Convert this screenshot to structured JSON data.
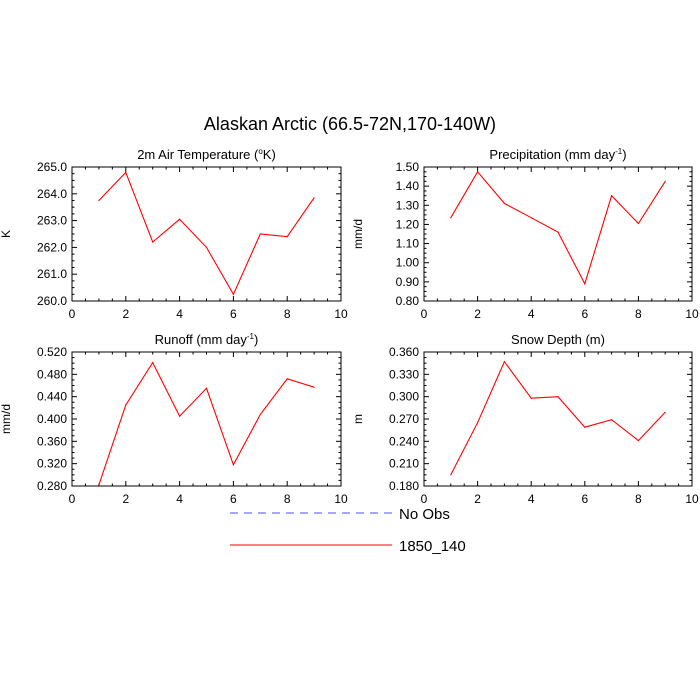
{
  "figure": {
    "title": "Alaskan Arctic (66.5-72N,170-140W)"
  },
  "legend": {
    "placement": "bottom-center",
    "entries": [
      {
        "label": "No Obs",
        "color": "#4f4fff",
        "dash": true
      },
      {
        "label": "1850_140",
        "color": "#ff0000",
        "dash": false
      }
    ]
  },
  "chart_data": [
    {
      "type": "line",
      "title": "2m Air Temperature (°K)",
      "title_main": "2m Air Temperature (",
      "title_sup": "o",
      "title_tail": "K)",
      "ylabel": "K",
      "xlim": [
        0,
        10
      ],
      "ylim": [
        260.0,
        265.0
      ],
      "x_ticks": [
        "0",
        "2",
        "4",
        "6",
        "8",
        "10"
      ],
      "y_ticks": [
        "260.0",
        "261.0",
        "262.0",
        "263.0",
        "264.0",
        "265.0"
      ],
      "series": [
        {
          "name": "1850_140",
          "color": "#ff0000",
          "x": [
            1,
            2,
            3,
            4,
            5,
            6,
            7,
            8,
            9
          ],
          "values": [
            263.75,
            264.8,
            262.2,
            263.05,
            262.0,
            260.25,
            262.5,
            262.4,
            263.85
          ]
        }
      ]
    },
    {
      "type": "line",
      "title": "Precipitation (mm day-1)",
      "title_main": "Precipitation (mm day",
      "title_sup": "-1",
      "title_tail": ")",
      "ylabel": "mm/d",
      "xlim": [
        0,
        10
      ],
      "ylim": [
        0.8,
        1.5
      ],
      "x_ticks": [
        "0",
        "2",
        "4",
        "6",
        "8",
        "10"
      ],
      "y_ticks": [
        "0.80",
        "0.90",
        "1.00",
        "1.10",
        "1.20",
        "1.30",
        "1.40",
        "1.50"
      ],
      "series": [
        {
          "name": "1850_140",
          "color": "#ff0000",
          "x": [
            1,
            2,
            3,
            4,
            5,
            6,
            7,
            8,
            9
          ],
          "values": [
            1.235,
            1.475,
            1.31,
            1.235,
            1.16,
            0.89,
            1.35,
            1.205,
            1.425
          ]
        }
      ]
    },
    {
      "type": "line",
      "title": "Runoff (mm day-1)",
      "title_main": "Runoff (mm day",
      "title_sup": "-1",
      "title_tail": ")",
      "ylabel": "mm/d",
      "xlim": [
        0,
        10
      ],
      "ylim": [
        0.28,
        0.52
      ],
      "x_ticks": [
        "0",
        "2",
        "4",
        "6",
        "8",
        "10"
      ],
      "y_ticks": [
        "0.280",
        "0.320",
        "0.360",
        "0.400",
        "0.440",
        "0.480",
        "0.520"
      ],
      "series": [
        {
          "name": "1850_140",
          "color": "#ff0000",
          "x": [
            1,
            2,
            3,
            4,
            5,
            6,
            7,
            8,
            9
          ],
          "values": [
            0.282,
            0.425,
            0.501,
            0.405,
            0.455,
            0.318,
            0.408,
            0.472,
            0.457
          ]
        }
      ]
    },
    {
      "type": "line",
      "title": "Snow Depth (m)",
      "title_main": "Snow Depth (m)",
      "title_sup": "",
      "title_tail": "",
      "ylabel": "m",
      "xlim": [
        0,
        10
      ],
      "ylim": [
        0.18,
        0.36
      ],
      "x_ticks": [
        "0",
        "2",
        "4",
        "6",
        "8",
        "10"
      ],
      "y_ticks": [
        "0.180",
        "0.210",
        "0.240",
        "0.270",
        "0.300",
        "0.330",
        "0.360"
      ],
      "series": [
        {
          "name": "1850_140",
          "color": "#ff0000",
          "x": [
            1,
            2,
            3,
            4,
            5,
            6,
            7,
            8,
            9
          ],
          "values": [
            0.195,
            0.265,
            0.347,
            0.298,
            0.3,
            0.259,
            0.269,
            0.241,
            0.279
          ]
        }
      ]
    }
  ]
}
